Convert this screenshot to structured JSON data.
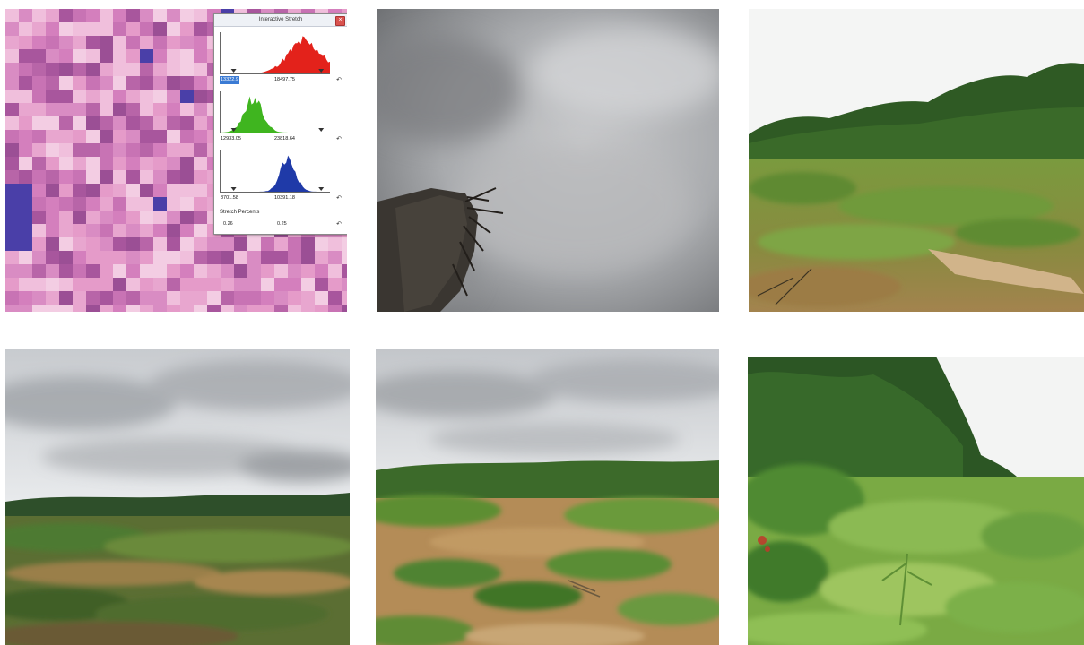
{
  "dialog": {
    "title": "Interactive Stretch",
    "close_glyph": "×",
    "bands": [
      {
        "color": "#e3221b",
        "min": "13322.9",
        "max": "18497.75",
        "min_selected": true
      },
      {
        "color": "#3fb51f",
        "min": "12933.05",
        "max": "23818.64",
        "min_selected": false
      },
      {
        "color": "#1f3aa8",
        "min": "8701.58",
        "max": "10391.18",
        "min_selected": false
      }
    ],
    "reset_glyph": "↶",
    "percentile_label": "Stretch Percents",
    "percentile_low": "0.26",
    "percentile_high": "0.25"
  },
  "icons": {
    "close": "close-icon",
    "reset": "reset-icon"
  }
}
